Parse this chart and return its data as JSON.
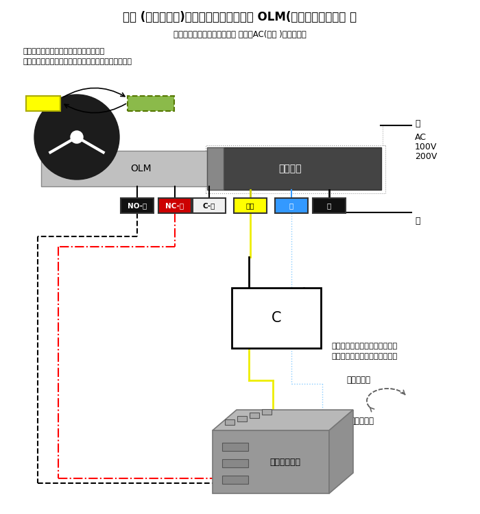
{
  "title": "回転 (ロータリー)タイプ電動シリンダー OLM(過負荷停止機構型 ）",
  "subtitle": "（動作説明及び実体配線方法 ）　＊AC(交流 )電源の場合",
  "note1": "回転途中で負荷が有るとそこで自動停止",
  "note2": "次に動作させる信号を与えた場合逆方向に動きます。",
  "label_OLM": "OLM",
  "label_motor": "モータ線",
  "label_NO": "NO-黒",
  "label_NC": "NC-赤",
  "label_C_term": "C-白",
  "label_yellow": "黄色",
  "label_blue": "青",
  "label_black": "黒",
  "label_shiro": "白",
  "label_ac1": "AC",
  "label_ac2": "100V",
  "label_ac3": "200V",
  "label_kuro": "黒",
  "label_C_box": "C",
  "label_switch": "選択スイッチ",
  "label_right": "（右回転）",
  "label_left": "（左回転）",
  "note_rot1": "＊回転方向は減速の選定に依り",
  "note_rot2": "　図と違う場合がございます。",
  "bg_color": "#ffffff",
  "olm_body_color": "#c0c0c0",
  "motor_body_color": "#444444",
  "wheel_color": "#1c1c1c",
  "connector_color": "#888888",
  "yellow_fill": "#ffff00",
  "green_fill": "#8bba4a",
  "switch_top_color": "#b8b8b8",
  "switch_front_color": "#989898",
  "switch_side_color": "#d0d0d0"
}
